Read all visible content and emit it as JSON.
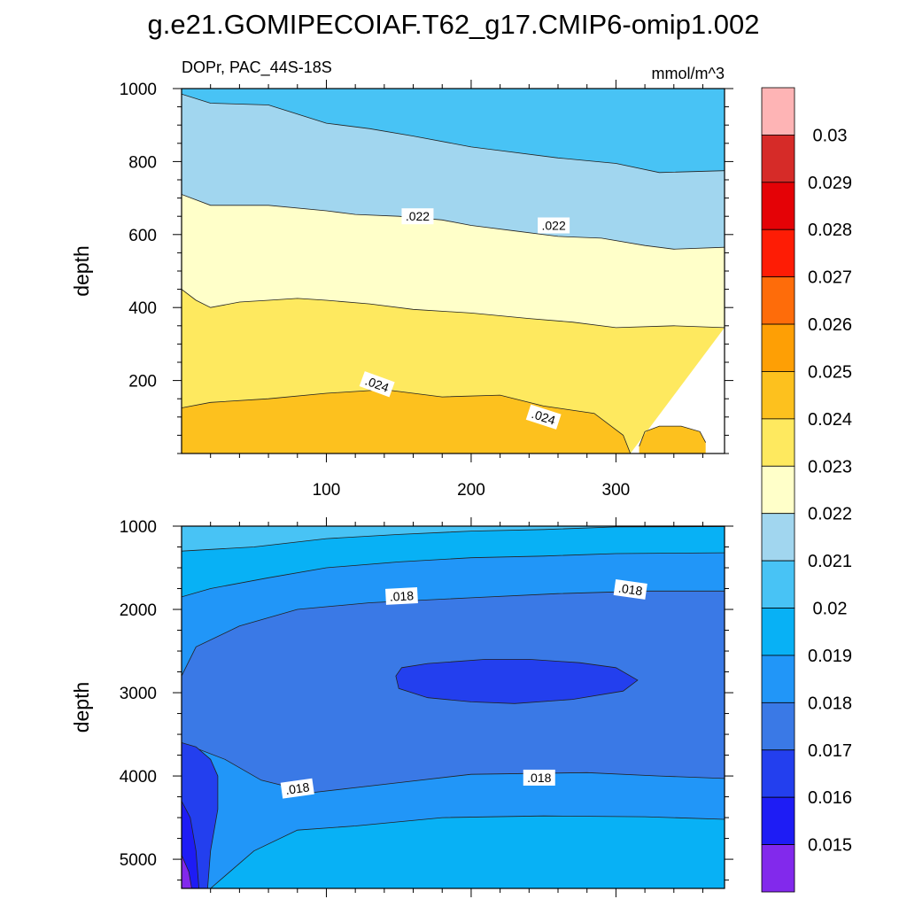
{
  "title": "g.e21.GOMIPECOIAF.T62_g17.CMIP6-omip1.002",
  "subtitle_left": "DOPr, PAC_44S-18S",
  "subtitle_right": "mmol/m^3",
  "chart_data": [
    {
      "type": "contour",
      "panel": "top",
      "ylabel": "depth",
      "xlabel": "",
      "xlim": [
        0,
        375
      ],
      "ylim": [
        1000,
        0
      ],
      "x_ticks": [
        {
          "value": 100,
          "label": "100"
        },
        {
          "value": 200,
          "label": "200"
        },
        {
          "value": 300,
          "label": "300"
        }
      ],
      "y_ticks": [
        {
          "value": 200,
          "label": "200"
        },
        {
          "value": 400,
          "label": "400"
        },
        {
          "value": 600,
          "label": "600"
        },
        {
          "value": 800,
          "label": "800"
        },
        {
          "value": 1000,
          "label": "1000"
        }
      ],
      "bands": [
        {
          "range": [
            0.024,
            0.025
          ],
          "color": "#fdc11e",
          "top": [
            [
              0,
              0
            ],
            [
              375,
              0
            ]
          ],
          "bottom": [
            [
              0,
              125
            ],
            [
              20,
              140
            ],
            [
              60,
              150
            ],
            [
              100,
              165
            ],
            [
              140,
              175
            ],
            [
              180,
              155
            ],
            [
              220,
              160
            ],
            [
              250,
              130
            ],
            [
              285,
              110
            ],
            [
              305,
              50
            ],
            [
              310,
              0
            ]
          ]
        },
        {
          "range": [
            0.024,
            0.025
          ],
          "color": "#fdc11e",
          "top": [
            [
              316,
              0
            ],
            [
              362,
              0
            ]
          ],
          "bottom": [
            [
              316,
              20
            ],
            [
              320,
              60
            ],
            [
              330,
              75
            ],
            [
              345,
              75
            ],
            [
              358,
              60
            ],
            [
              362,
              30
            ]
          ]
        },
        {
          "range": [
            0.023,
            0.024
          ],
          "color": "#fee95f",
          "top": "prev",
          "bottom": [
            [
              0,
              450
            ],
            [
              10,
              420
            ],
            [
              20,
              400
            ],
            [
              40,
              415
            ],
            [
              60,
              420
            ],
            [
              80,
              425
            ],
            [
              100,
              420
            ],
            [
              130,
              410
            ],
            [
              160,
              395
            ],
            [
              200,
              385
            ],
            [
              240,
              370
            ],
            [
              270,
              360
            ],
            [
              300,
              345
            ],
            [
              340,
              350
            ],
            [
              375,
              345
            ]
          ]
        },
        {
          "range": [
            0.022,
            0.023
          ],
          "color": "#ffffc9",
          "top": "prev",
          "bottom": [
            [
              0,
              710
            ],
            [
              20,
              680
            ],
            [
              60,
              680
            ],
            [
              100,
              665
            ],
            [
              120,
              655
            ],
            [
              150,
              650
            ],
            [
              180,
              640
            ],
            [
              200,
              625
            ],
            [
              230,
              610
            ],
            [
              260,
              595
            ],
            [
              290,
              590
            ],
            [
              320,
              570
            ],
            [
              340,
              560
            ],
            [
              375,
              565
            ]
          ]
        },
        {
          "range": [
            0.021,
            0.022
          ],
          "color": "#a1d6ef",
          "top": "prev",
          "bottom": [
            [
              0,
              985
            ],
            [
              20,
              960
            ],
            [
              60,
              955
            ],
            [
              100,
              905
            ],
            [
              130,
              890
            ],
            [
              160,
              870
            ],
            [
              200,
              840
            ],
            [
              220,
              830
            ],
            [
              260,
              810
            ],
            [
              300,
              795
            ],
            [
              330,
              770
            ],
            [
              375,
              775
            ]
          ]
        },
        {
          "range": [
            0.02,
            0.021
          ],
          "color": "#48c3f5",
          "top": "prev",
          "bottom": [
            [
              0,
              1000
            ],
            [
              375,
              1000
            ]
          ]
        }
      ],
      "contour_labels": [
        {
          "text": ".024",
          "x": 135,
          "y": 190,
          "angle": 20
        },
        {
          "text": ".024",
          "x": 250,
          "y": 100,
          "angle": 18
        },
        {
          "text": ".022",
          "x": 163,
          "y": 650,
          "angle": 0
        },
        {
          "text": ".022",
          "x": 257,
          "y": 625,
          "angle": 0
        }
      ]
    },
    {
      "type": "contour",
      "panel": "bottom",
      "ylabel": "depth",
      "xlabel": "",
      "xlim": [
        0,
        375
      ],
      "ylim": [
        1000,
        5350
      ],
      "x_ticks": [
        {
          "value": 100,
          "label": ""
        },
        {
          "value": 200,
          "label": ""
        },
        {
          "value": 300,
          "label": ""
        }
      ],
      "y_ticks": [
        {
          "value": 1000,
          "label": "1000"
        },
        {
          "value": 2000,
          "label": "2000"
        },
        {
          "value": 3000,
          "label": "3000"
        },
        {
          "value": 4000,
          "label": "4000"
        },
        {
          "value": 5000,
          "label": "5000"
        }
      ],
      "bands": [
        {
          "range": [
            0.02,
            0.021
          ],
          "color": "#48c3f5",
          "top": [
            [
              0,
              1000
            ],
            [
              375,
              1000
            ]
          ],
          "bottom": [
            [
              0,
              1300
            ],
            [
              50,
              1250
            ],
            [
              100,
              1150
            ],
            [
              150,
              1100
            ],
            [
              200,
              1060
            ],
            [
              250,
              1040
            ],
            [
              300,
              1010
            ],
            [
              375,
              1005
            ]
          ]
        },
        {
          "range": [
            0.019,
            0.02
          ],
          "color": "#08b1f5",
          "top": "prev",
          "bottom": [
            [
              0,
              1850
            ],
            [
              20,
              1750
            ],
            [
              60,
              1620
            ],
            [
              100,
              1500
            ],
            [
              150,
              1430
            ],
            [
              200,
              1380
            ],
            [
              250,
              1360
            ],
            [
              300,
              1330
            ],
            [
              375,
              1320
            ]
          ]
        },
        {
          "range": [
            0.018,
            0.019
          ],
          "color": "#2196f8",
          "top": "prev",
          "bottom": [
            [
              0,
              2800
            ],
            [
              10,
              2450
            ],
            [
              40,
              2200
            ],
            [
              80,
              2000
            ],
            [
              130,
              1920
            ],
            [
              200,
              1860
            ],
            [
              260,
              1810
            ],
            [
              320,
              1780
            ],
            [
              375,
              1780
            ]
          ]
        },
        {
          "range": [
            0.017,
            0.018
          ],
          "color": "#3a79e6",
          "top": "prev",
          "bottom": [
            [
              0,
              3600
            ],
            [
              30,
              3800
            ],
            [
              55,
              4050
            ],
            [
              90,
              4200
            ],
            [
              150,
              4080
            ],
            [
              200,
              3980
            ],
            [
              280,
              3960
            ],
            [
              330,
              4000
            ],
            [
              375,
              4030
            ]
          ]
        },
        {
          "range": [
            0.018,
            0.019
          ],
          "color": "#2196f8",
          "top": "prev",
          "bottom": [
            [
              0,
              5350
            ],
            [
              20,
              5350
            ],
            [
              50,
              4900
            ],
            [
              80,
              4650
            ],
            [
              120,
              4600
            ],
            [
              180,
              4500
            ],
            [
              250,
              4480
            ],
            [
              320,
              4490
            ],
            [
              375,
              4520
            ]
          ]
        },
        {
          "range": [
            0.019,
            0.02
          ],
          "color": "#08b1f5",
          "top": "prev",
          "bottom": [
            [
              0,
              5350
            ],
            [
              375,
              5350
            ]
          ]
        }
      ],
      "blobs": [
        {
          "range": [
            0.016,
            0.017
          ],
          "color": "#233fee",
          "points": [
            [
              148,
              2800
            ],
            [
              152,
              2700
            ],
            [
              170,
              2650
            ],
            [
              210,
              2600
            ],
            [
              240,
              2600
            ],
            [
              275,
              2640
            ],
            [
              300,
              2700
            ],
            [
              315,
              2850
            ],
            [
              305,
              2980
            ],
            [
              270,
              3080
            ],
            [
              230,
              3130
            ],
            [
              200,
              3110
            ],
            [
              170,
              3060
            ],
            [
              150,
              2950
            ]
          ]
        },
        {
          "range": [
            0.016,
            0.017
          ],
          "color": "#233fee",
          "points": [
            [
              0,
              3600
            ],
            [
              10,
              3650
            ],
            [
              20,
              3800
            ],
            [
              25,
              4000
            ],
            [
              25,
              4400
            ],
            [
              20,
              4900
            ],
            [
              18,
              5350
            ],
            [
              0,
              5350
            ]
          ]
        },
        {
          "range": [
            0.015,
            0.016
          ],
          "color": "#1e1cf5",
          "points": [
            [
              0,
              4300
            ],
            [
              6,
              4500
            ],
            [
              10,
              4900
            ],
            [
              12,
              5350
            ],
            [
              0,
              5350
            ]
          ]
        },
        {
          "range": [
            0.014,
            0.015
          ],
          "color": "#8229ec",
          "points": [
            [
              0,
              4950
            ],
            [
              5,
              5150
            ],
            [
              7,
              5350
            ],
            [
              0,
              5350
            ]
          ]
        }
      ],
      "contour_labels": [
        {
          "text": ".018",
          "x": 152,
          "y": 1840,
          "angle": -3
        },
        {
          "text": ".018",
          "x": 310,
          "y": 1760,
          "angle": 8
        },
        {
          "text": ".018",
          "x": 80,
          "y": 4150,
          "angle": -8
        },
        {
          "text": ".018",
          "x": 247,
          "y": 4020,
          "angle": 0
        }
      ]
    }
  ],
  "colorbar": {
    "labels": [
      "0.03",
      "0.029",
      "0.028",
      "0.027",
      "0.026",
      "0.025",
      "0.024",
      "0.023",
      "0.022",
      "0.021",
      "0.02",
      "0.019",
      "0.018",
      "0.017",
      "0.016",
      "0.015"
    ],
    "colors": [
      "#feb4b5",
      "#d62b28",
      "#e40206",
      "#fe1c05",
      "#fe6c0a",
      "#fe9f05",
      "#fdc11e",
      "#fee95f",
      "#ffffc9",
      "#a1d6ef",
      "#48c3f5",
      "#08b1f5",
      "#2196f8",
      "#3a79e6",
      "#233fee",
      "#1e1cf5",
      "#8229ec"
    ]
  }
}
